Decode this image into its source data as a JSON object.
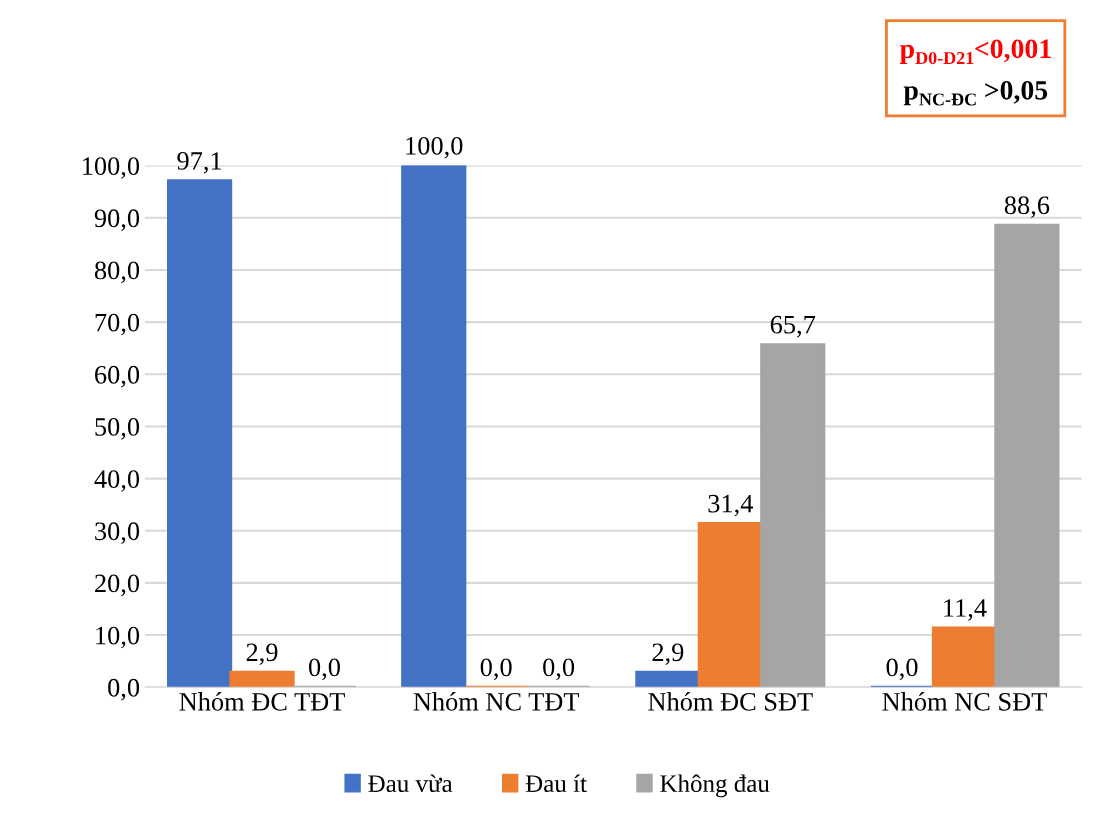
{
  "chart_data": {
    "type": "bar",
    "categories": [
      "Nhóm ĐC TĐT",
      "Nhóm NC TĐT",
      "Nhóm ĐC SĐT",
      "Nhóm NC SĐT"
    ],
    "series": [
      {
        "name": "Đau vừa",
        "color": "#4472c4",
        "values": [
          97.1,
          100.0,
          2.9,
          0.0
        ],
        "value_labels": [
          "97,1",
          "100,0",
          "2,9",
          "0,0"
        ]
      },
      {
        "name": "Đau ít",
        "color": "#ed7d31",
        "values": [
          2.9,
          0.0,
          31.4,
          11.4
        ],
        "value_labels": [
          "2,9",
          "0,0",
          "31,4",
          "11,4"
        ]
      },
      {
        "name": "Không đau",
        "color": "#a5a5a5",
        "values": [
          0.0,
          0.0,
          65.7,
          88.6
        ],
        "value_labels": [
          "0,0",
          "0,0",
          "65,7",
          "88,6"
        ]
      }
    ],
    "ylim": [
      0,
      100
    ],
    "yticks": [
      {
        "value": 0,
        "label": "0,0"
      },
      {
        "value": 10,
        "label": "10,0"
      },
      {
        "value": 20,
        "label": "20,0"
      },
      {
        "value": 30,
        "label": "30,0"
      },
      {
        "value": 40,
        "label": "40,0"
      },
      {
        "value": 50,
        "label": "50,0"
      },
      {
        "value": 60,
        "label": "60,0"
      },
      {
        "value": 70,
        "label": "70,0"
      },
      {
        "value": 80,
        "label": "80,0"
      },
      {
        "value": 90,
        "label": "90,0"
      },
      {
        "value": 100,
        "label": "100,0"
      }
    ],
    "grid": "y",
    "legend": "bottom",
    "annotations": [
      "p$_{D0-D21}$<0,001",
      "p$_{NC-ĐC}$ >0,05"
    ]
  }
}
